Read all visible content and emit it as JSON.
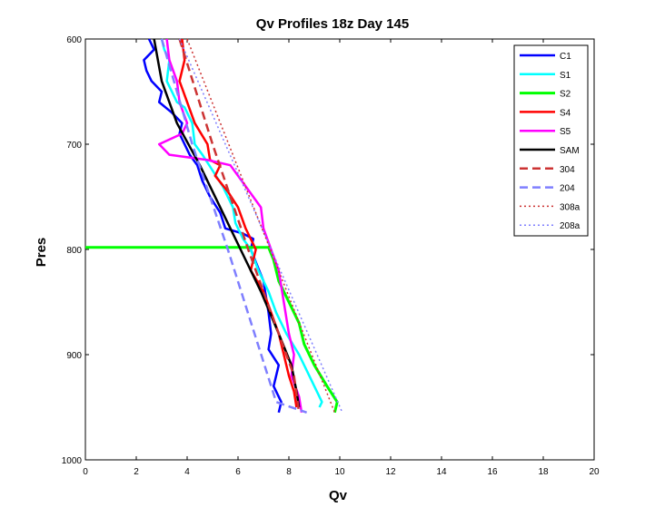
{
  "chart_data": {
    "type": "line",
    "title": "Qv Profiles 18z Day 145",
    "xlabel": "Qv",
    "ylabel": "Pres",
    "xlim": [
      0,
      20
    ],
    "ylim": [
      1000,
      600
    ],
    "y_reversed": true,
    "x_ticks": [
      "0",
      "2",
      "4",
      "6",
      "8",
      "10",
      "12",
      "14",
      "16",
      "18",
      "20"
    ],
    "y_ticks": [
      "600",
      "700",
      "800",
      "900",
      "1000"
    ],
    "grid": false,
    "legend_position": "top-right",
    "series": [
      {
        "name": "C1",
        "color": "#0000ff",
        "style": "solid",
        "width": 2.5,
        "points": [
          [
            2.5,
            600
          ],
          [
            2.7,
            610
          ],
          [
            2.3,
            620
          ],
          [
            2.4,
            630
          ],
          [
            2.6,
            640
          ],
          [
            3.0,
            650
          ],
          [
            2.9,
            660
          ],
          [
            3.4,
            670
          ],
          [
            3.8,
            680
          ],
          [
            3.7,
            690
          ],
          [
            3.9,
            700
          ],
          [
            4.1,
            710
          ],
          [
            4.4,
            720
          ],
          [
            4.6,
            735
          ],
          [
            4.9,
            750
          ],
          [
            5.3,
            765
          ],
          [
            5.5,
            780
          ],
          [
            6.2,
            785
          ],
          [
            6.6,
            790
          ],
          [
            6.5,
            800
          ],
          [
            7.0,
            830
          ],
          [
            7.2,
            860
          ],
          [
            7.3,
            880
          ],
          [
            7.2,
            895
          ],
          [
            7.6,
            910
          ],
          [
            7.4,
            930
          ],
          [
            7.7,
            945
          ],
          [
            7.6,
            955
          ]
        ]
      },
      {
        "name": "S1",
        "color": "#00ffff",
        "style": "solid",
        "width": 2.5,
        "points": [
          [
            3.0,
            600
          ],
          [
            3.1,
            610
          ],
          [
            3.3,
            620
          ],
          [
            3.2,
            640
          ],
          [
            3.6,
            660
          ],
          [
            3.9,
            665
          ],
          [
            4.2,
            680
          ],
          [
            4.3,
            700
          ],
          [
            4.6,
            710
          ],
          [
            5.0,
            725
          ],
          [
            5.4,
            740
          ],
          [
            5.8,
            760
          ],
          [
            5.9,
            775
          ],
          [
            6.2,
            790
          ],
          [
            6.5,
            800
          ],
          [
            6.8,
            820
          ],
          [
            7.2,
            840
          ],
          [
            7.5,
            860
          ],
          [
            7.9,
            880
          ],
          [
            8.4,
            900
          ],
          [
            8.8,
            920
          ],
          [
            9.0,
            930
          ],
          [
            9.3,
            945
          ],
          [
            9.2,
            950
          ]
        ]
      },
      {
        "name": "S2",
        "color": "#00ff00",
        "style": "solid",
        "width": 3,
        "points": [
          [
            0.0,
            798
          ],
          [
            7.2,
            798
          ],
          [
            7.4,
            810
          ],
          [
            7.6,
            830
          ],
          [
            8.0,
            850
          ],
          [
            8.4,
            870
          ],
          [
            8.6,
            890
          ],
          [
            9.0,
            910
          ],
          [
            9.5,
            930
          ],
          [
            9.9,
            945
          ],
          [
            9.8,
            955
          ]
        ]
      },
      {
        "name": "S4",
        "color": "#ff0000",
        "style": "solid",
        "width": 2.5,
        "points": [
          [
            3.8,
            600
          ],
          [
            3.9,
            620
          ],
          [
            3.7,
            640
          ],
          [
            4.0,
            660
          ],
          [
            4.3,
            680
          ],
          [
            4.8,
            700
          ],
          [
            4.9,
            715
          ],
          [
            5.3,
            720
          ],
          [
            5.1,
            730
          ],
          [
            5.6,
            745
          ],
          [
            6.0,
            760
          ],
          [
            6.3,
            780
          ],
          [
            6.7,
            800
          ],
          [
            6.5,
            820
          ],
          [
            7.0,
            840
          ],
          [
            7.3,
            860
          ],
          [
            7.6,
            880
          ],
          [
            7.8,
            900
          ],
          [
            8.0,
            920
          ],
          [
            8.2,
            935
          ],
          [
            8.3,
            950
          ]
        ]
      },
      {
        "name": "S5",
        "color": "#ff00ff",
        "style": "solid",
        "width": 2.5,
        "points": [
          [
            3.2,
            600
          ],
          [
            3.3,
            620
          ],
          [
            3.6,
            640
          ],
          [
            3.7,
            660
          ],
          [
            4.0,
            680
          ],
          [
            3.8,
            690
          ],
          [
            2.9,
            700
          ],
          [
            3.3,
            710
          ],
          [
            4.8,
            715
          ],
          [
            5.7,
            720
          ],
          [
            6.3,
            740
          ],
          [
            6.9,
            760
          ],
          [
            7.0,
            780
          ],
          [
            7.3,
            800
          ],
          [
            7.6,
            820
          ],
          [
            7.8,
            850
          ],
          [
            8.0,
            880
          ],
          [
            8.2,
            900
          ],
          [
            8.1,
            920
          ],
          [
            8.4,
            940
          ],
          [
            8.5,
            955
          ]
        ]
      },
      {
        "name": "SAM",
        "color": "#000000",
        "style": "solid",
        "width": 2.5,
        "points": [
          [
            2.7,
            600
          ],
          [
            3.0,
            640
          ],
          [
            3.6,
            680
          ],
          [
            4.5,
            720
          ],
          [
            5.3,
            760
          ],
          [
            6.1,
            800
          ],
          [
            6.9,
            840
          ],
          [
            7.6,
            880
          ],
          [
            8.1,
            910
          ],
          [
            8.3,
            935
          ],
          [
            8.4,
            950
          ]
        ]
      },
      {
        "name": "304",
        "color": "#cc3333",
        "style": "dashed",
        "width": 2.5,
        "points": [
          [
            3.7,
            600
          ],
          [
            5.0,
            700
          ],
          [
            6.4,
            800
          ],
          [
            8.2,
            920
          ],
          [
            8.4,
            955
          ]
        ]
      },
      {
        "name": "204",
        "color": "#7f7fff",
        "style": "dashed",
        "width": 2.5,
        "points": [
          [
            3.0,
            600
          ],
          [
            4.2,
            700
          ],
          [
            5.6,
            800
          ],
          [
            7.5,
            945
          ],
          [
            8.7,
            955
          ]
        ]
      },
      {
        "name": "308a",
        "color": "#cc3333",
        "style": "dotted",
        "width": 1.5,
        "points": [
          [
            4.0,
            600
          ],
          [
            9.8,
            955
          ]
        ]
      },
      {
        "name": "208a",
        "color": "#7f7fff",
        "style": "dotted",
        "width": 1.5,
        "points": [
          [
            3.7,
            600
          ],
          [
            10.1,
            955
          ]
        ]
      }
    ]
  }
}
